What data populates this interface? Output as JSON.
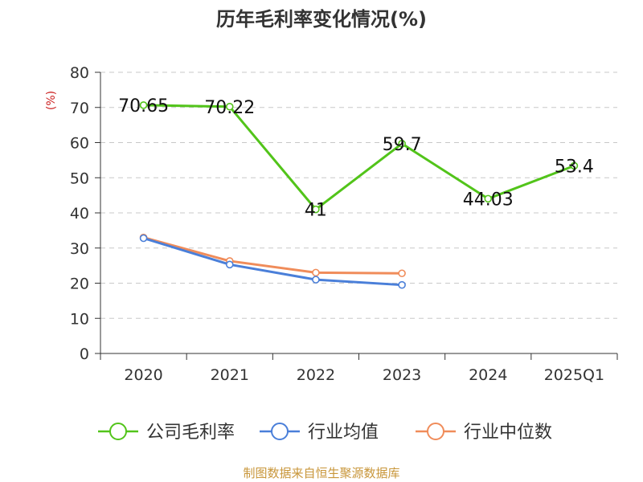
{
  "chart_data": {
    "type": "line",
    "title": "历年毛利率变化情况(%)",
    "ylabel": "(%)",
    "categories": [
      "2020",
      "2021",
      "2022",
      "2023",
      "2024",
      "2025Q1"
    ],
    "ylim": [
      0,
      80
    ],
    "yticks": [
      0,
      10,
      20,
      30,
      40,
      50,
      60,
      70,
      80
    ],
    "grid": true,
    "legend_position": "bottom",
    "series": [
      {
        "name": "公司毛利率",
        "color": "#52c41a",
        "values": [
          70.65,
          70.22,
          41,
          59.7,
          44.03,
          53.4
        ],
        "labels": [
          "70.65",
          "70.22",
          "41",
          "59.7",
          "44.03",
          "53.4"
        ]
      },
      {
        "name": "行业均值",
        "color": "#4a7fd9",
        "values": [
          32.8,
          25.3,
          21.0,
          19.5,
          null,
          null
        ]
      },
      {
        "name": "行业中位数",
        "color": "#f08c5a",
        "values": [
          33.0,
          26.3,
          23.0,
          22.8,
          null,
          null
        ]
      }
    ],
    "source": "制图数据来自恒生聚源数据库"
  }
}
